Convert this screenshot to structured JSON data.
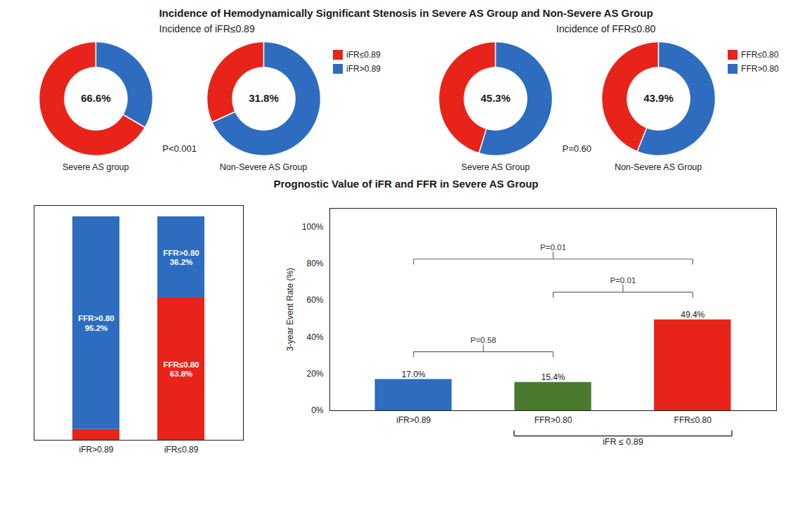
{
  "chart_data": [
    {
      "type": "pie",
      "title": "Incidence of Hemodynamically Significant Stenosis in Severe AS Group and Non-Severe AS Group",
      "subtitle": "Incidence of iFR≤0.89",
      "categories": [
        "iFR≤0.89",
        "iFR>0.89"
      ],
      "colors": [
        "#e8231a",
        "#2d6cbf"
      ],
      "series": [
        {
          "name": "Severe AS group",
          "values": [
            66.6,
            33.4
          ],
          "value_labels": [
            "66.6%",
            null
          ]
        },
        {
          "name": "Non-Severe AS Group",
          "values": [
            31.8,
            68.2
          ],
          "value_labels": [
            "31.8%",
            null
          ]
        }
      ],
      "legend": "right",
      "annotations": [
        "P<0.001"
      ]
    },
    {
      "type": "pie",
      "subtitle": "Incidence of FFR≤0.80",
      "categories": [
        "FFR≤0.80",
        "FFR>0.80"
      ],
      "colors": [
        "#e8231a",
        "#2d6cbf"
      ],
      "series": [
        {
          "name": "Severe AS Group",
          "values": [
            45.3,
            54.7
          ],
          "value_labels": [
            "45.3%",
            null
          ]
        },
        {
          "name": "Non-Severe AS Group",
          "values": [
            43.9,
            56.1
          ],
          "value_labels": [
            "43.9%",
            null
          ]
        }
      ],
      "legend": "right",
      "annotations": [
        "P=0.60"
      ]
    },
    {
      "type": "bar",
      "stacked": true,
      "title": "Prognostic Value of iFR and FFR in Severe AS Group",
      "categories": [
        "iFR>0.89",
        "iFR≤0.89"
      ],
      "series": [
        {
          "color": "#e8231a",
          "values": [
            4.8,
            63.8
          ],
          "value_labels": [
            null,
            "FFR≤0.80\n63.8%"
          ]
        },
        {
          "color": "#2d6cbf",
          "values": [
            95.2,
            36.2
          ],
          "value_labels": [
            "FFR>0.80\n95.2%",
            "FFR>0.80\n36.2%"
          ]
        }
      ],
      "ylim": [
        0,
        105
      ],
      "tick_labels": "x"
    },
    {
      "type": "bar",
      "categories": [
        "iFR>0.89",
        "FFR>0.80",
        "FFR≤0.80"
      ],
      "values": [
        17.0,
        15.4,
        49.4
      ],
      "value_labels": [
        "17.0%",
        "15.4%",
        "49.4%"
      ],
      "colors": [
        "#2d6cbf",
        "#4a7a2e",
        "#e8231a"
      ],
      "ylabel": "3-year Event Rate (%)",
      "ylim": [
        0,
        110
      ],
      "yticks": [
        {
          "value": 0,
          "label": "0%"
        },
        {
          "value": 20,
          "label": "20%"
        },
        {
          "value": 40,
          "label": "40%"
        },
        {
          "value": 60,
          "label": "60%"
        },
        {
          "value": 80,
          "label": "80%"
        },
        {
          "value": 100,
          "label": "100%"
        }
      ],
      "annotations": [
        {
          "text": "P=0.58",
          "between": [
            "iFR>0.89",
            "FFR>0.80"
          ]
        },
        {
          "text": "P=0.01",
          "between": [
            "FFR>0.80",
            "FFR≤0.80"
          ]
        },
        {
          "text": "P=0.01",
          "between": [
            "iFR>0.89",
            "FFR≤0.80"
          ]
        },
        {
          "text": "iFR ≤ 0.89",
          "group": [
            "FFR>0.80",
            "FFR≤0.80"
          ]
        }
      ]
    }
  ]
}
